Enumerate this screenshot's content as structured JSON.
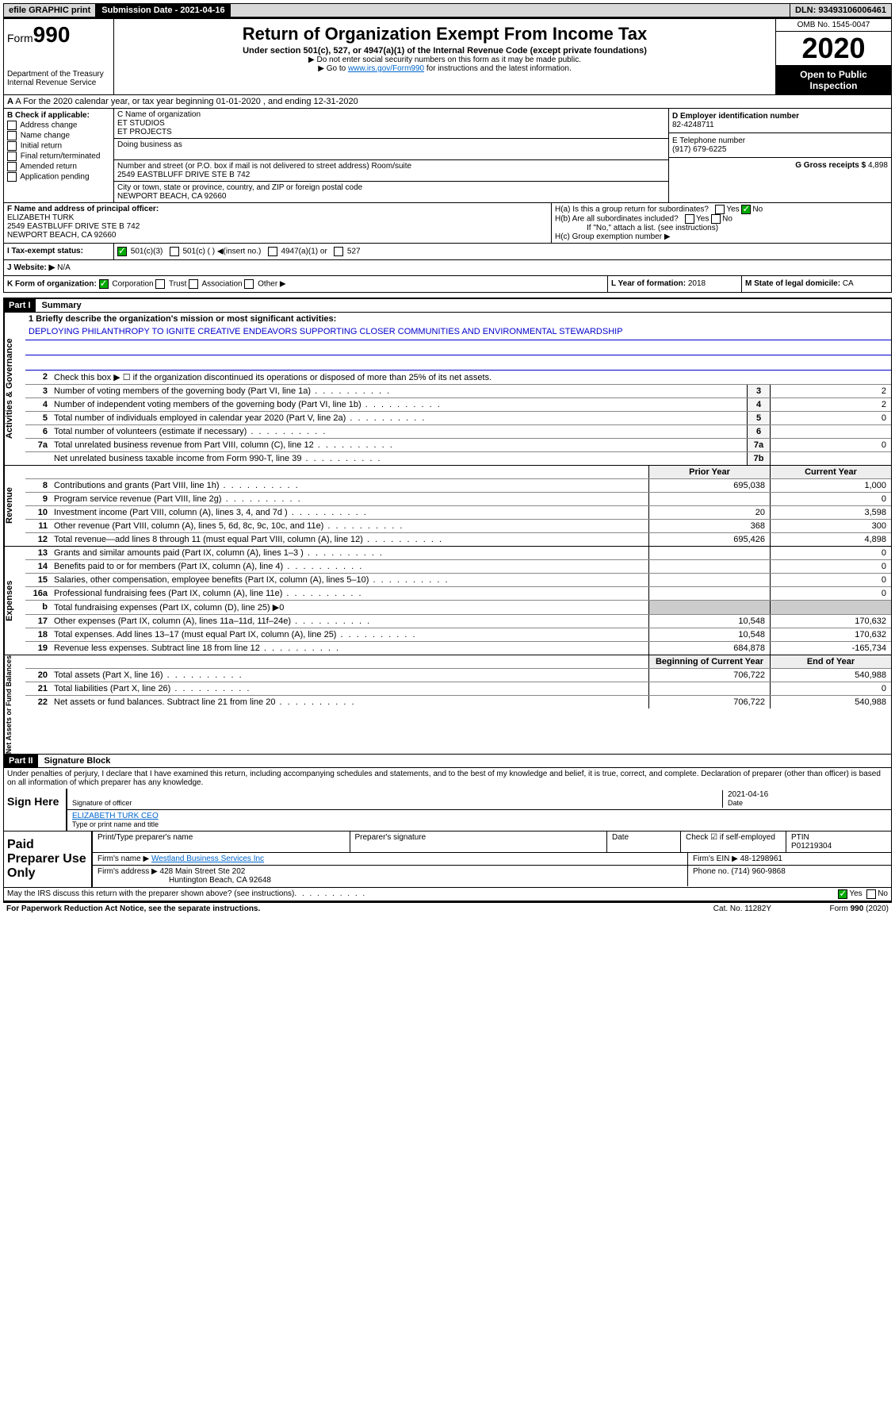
{
  "topbar": {
    "efile": "efile GRAPHIC print",
    "subdate_label": "Submission Date - 2021-04-16",
    "dln": "DLN: 93493106006461"
  },
  "header": {
    "form_prefix": "Form",
    "form_no": "990",
    "dept": "Department of the Treasury",
    "irs": "Internal Revenue Service",
    "title": "Return of Organization Exempt From Income Tax",
    "sub": "Under section 501(c), 527, or 4947(a)(1) of the Internal Revenue Code (except private foundations)",
    "note1": "▶ Do not enter social security numbers on this form as it may be made public.",
    "note2_pre": "▶ Go to ",
    "note2_link": "www.irs.gov/Form990",
    "note2_post": " for instructions and the latest information.",
    "omb": "OMB No. 1545-0047",
    "year": "2020",
    "open": "Open to Public Inspection"
  },
  "rowA": "A For the 2020 calendar year, or tax year beginning 01-01-2020    , and ending 12-31-2020",
  "colB": {
    "hdr": "B Check if applicable:",
    "items": [
      "Address change",
      "Name change",
      "Initial return",
      "Final return/terminated",
      "Amended return",
      "Application pending"
    ]
  },
  "colC": {
    "name_lbl": "C Name of organization",
    "name1": "ET STUDIOS",
    "name2": "ET PROJECTS",
    "dba_lbl": "Doing business as",
    "addr_lbl": "Number and street (or P.O. box if mail is not delivered to street address)    Room/suite",
    "addr": "2549 EASTBLUFF DRIVE STE B 742",
    "city_lbl": "City or town, state or province, country, and ZIP or foreign postal code",
    "city": "NEWPORT BEACH, CA  92660"
  },
  "colD": {
    "lbl": "D Employer identification number",
    "val": "82-4248711"
  },
  "colE": {
    "lbl": "E Telephone number",
    "val": "(917) 679-6225"
  },
  "colG": {
    "lbl": "G Gross receipts $",
    "val": "4,898"
  },
  "rowF": {
    "lbl": "F  Name and address of principal officer:",
    "name": "ELIZABETH TURK",
    "addr1": "2549 EASTBLUFF DRIVE STE B 742",
    "addr2": "NEWPORT BEACH, CA  92660"
  },
  "rowH": {
    "ha": "H(a)  Is this a group return for subordinates?",
    "hb": "H(b)  Are all subordinates included?",
    "hb_note": "If \"No,\" attach a list. (see instructions)",
    "hc": "H(c)  Group exemption number ▶"
  },
  "rowI": {
    "lbl": "I   Tax-exempt status:",
    "opts": [
      "501(c)(3)",
      "501(c) (  ) ◀(insert no.)",
      "4947(a)(1) or",
      "527"
    ]
  },
  "rowJ": {
    "lbl": "J   Website: ▶",
    "val": "N/A"
  },
  "rowK": {
    "lbl": "K Form of organization:",
    "opts": [
      "Corporation",
      "Trust",
      "Association",
      "Other ▶"
    ]
  },
  "rowL": {
    "lbl": "L Year of formation:",
    "val": "2018"
  },
  "rowM": {
    "lbl": "M State of legal domicile:",
    "val": "CA"
  },
  "part1": {
    "hdr": "Part I",
    "title": "Summary"
  },
  "mission_lbl": "1  Briefly describe the organization's mission or most significant activities:",
  "mission": "DEPLOYING PHILANTHROPY TO IGNITE CREATIVE ENDEAVORS SUPPORTING CLOSER COMMUNITIES AND ENVIRONMENTAL STEWARDSHIP",
  "gov_lines": [
    {
      "n": "2",
      "d": "Check this box ▶ ☐  if the organization discontinued its operations or disposed of more than 25% of its net assets."
    },
    {
      "n": "3",
      "d": "Number of voting members of the governing body (Part VI, line 1a)",
      "b": "3",
      "v": "2"
    },
    {
      "n": "4",
      "d": "Number of independent voting members of the governing body (Part VI, line 1b)",
      "b": "4",
      "v": "2"
    },
    {
      "n": "5",
      "d": "Total number of individuals employed in calendar year 2020 (Part V, line 2a)",
      "b": "5",
      "v": "0"
    },
    {
      "n": "6",
      "d": "Total number of volunteers (estimate if necessary)",
      "b": "6",
      "v": ""
    },
    {
      "n": "7a",
      "d": "Total unrelated business revenue from Part VIII, column (C), line 12",
      "b": "7a",
      "v": "0"
    },
    {
      "n": "",
      "d": "Net unrelated business taxable income from Form 990-T, line 39",
      "b": "7b",
      "v": ""
    }
  ],
  "col_hdrs": {
    "prior": "Prior Year",
    "current": "Current Year"
  },
  "rev_lines": [
    {
      "n": "8",
      "d": "Contributions and grants (Part VIII, line 1h)",
      "p": "695,038",
      "c": "1,000"
    },
    {
      "n": "9",
      "d": "Program service revenue (Part VIII, line 2g)",
      "p": "",
      "c": "0"
    },
    {
      "n": "10",
      "d": "Investment income (Part VIII, column (A), lines 3, 4, and 7d )",
      "p": "20",
      "c": "3,598"
    },
    {
      "n": "11",
      "d": "Other revenue (Part VIII, column (A), lines 5, 6d, 8c, 9c, 10c, and 11e)",
      "p": "368",
      "c": "300"
    },
    {
      "n": "12",
      "d": "Total revenue—add lines 8 through 11 (must equal Part VIII, column (A), line 12)",
      "p": "695,426",
      "c": "4,898"
    }
  ],
  "exp_lines": [
    {
      "n": "13",
      "d": "Grants and similar amounts paid (Part IX, column (A), lines 1–3 )",
      "p": "",
      "c": "0"
    },
    {
      "n": "14",
      "d": "Benefits paid to or for members (Part IX, column (A), line 4)",
      "p": "",
      "c": "0"
    },
    {
      "n": "15",
      "d": "Salaries, other compensation, employee benefits (Part IX, column (A), lines 5–10)",
      "p": "",
      "c": "0"
    },
    {
      "n": "16a",
      "d": "Professional fundraising fees (Part IX, column (A), line 11e)",
      "p": "",
      "c": "0"
    },
    {
      "n": "b",
      "d": "Total fundraising expenses (Part IX, column (D), line 25) ▶0",
      "p": "—",
      "c": "—"
    },
    {
      "n": "17",
      "d": "Other expenses (Part IX, column (A), lines 11a–11d, 11f–24e)",
      "p": "10,548",
      "c": "170,632"
    },
    {
      "n": "18",
      "d": "Total expenses. Add lines 13–17 (must equal Part IX, column (A), line 25)",
      "p": "10,548",
      "c": "170,632"
    },
    {
      "n": "19",
      "d": "Revenue less expenses. Subtract line 18 from line 12",
      "p": "684,878",
      "c": "-165,734"
    }
  ],
  "net_hdrs": {
    "begin": "Beginning of Current Year",
    "end": "End of Year"
  },
  "net_lines": [
    {
      "n": "20",
      "d": "Total assets (Part X, line 16)",
      "p": "706,722",
      "c": "540,988"
    },
    {
      "n": "21",
      "d": "Total liabilities (Part X, line 26)",
      "p": "",
      "c": "0"
    },
    {
      "n": "22",
      "d": "Net assets or fund balances. Subtract line 21 from line 20",
      "p": "706,722",
      "c": "540,988"
    }
  ],
  "part2": {
    "hdr": "Part II",
    "title": "Signature Block"
  },
  "perjury": "Under penalties of perjury, I declare that I have examined this return, including accompanying schedules and statements, and to the best of my knowledge and belief, it is true, correct, and complete. Declaration of preparer (other than officer) is based on all information of which preparer has any knowledge.",
  "sign": {
    "here": "Sign Here",
    "sig_lbl": "Signature of officer",
    "date_lbl": "Date",
    "date": "2021-04-16",
    "name": "ELIZABETH TURK CEO",
    "name_lbl": "Type or print name and title"
  },
  "paid": {
    "hdr": "Paid Preparer Use Only",
    "cols": [
      "Print/Type preparer's name",
      "Preparer's signature",
      "Date"
    ],
    "check_lbl": "Check ☑ if self-employed",
    "ptin_lbl": "PTIN",
    "ptin": "P01219304",
    "firm_name_lbl": "Firm's name   ▶",
    "firm_name": "Westland Business Services Inc",
    "firm_ein_lbl": "Firm's EIN ▶",
    "firm_ein": "48-1298961",
    "firm_addr_lbl": "Firm's address ▶",
    "firm_addr1": "428 Main Street Ste 202",
    "firm_addr2": "Huntington Beach, CA  92648",
    "phone_lbl": "Phone no.",
    "phone": "(714) 960-9868"
  },
  "discuss": "May the IRS discuss this return with the preparer shown above? (see instructions)",
  "footer": {
    "pra": "For Paperwork Reduction Act Notice, see the separate instructions.",
    "cat": "Cat. No. 11282Y",
    "form": "Form 990 (2020)"
  },
  "sidebars": {
    "gov": "Activities & Governance",
    "rev": "Revenue",
    "exp": "Expenses",
    "net": "Net Assets or Fund Balances"
  }
}
